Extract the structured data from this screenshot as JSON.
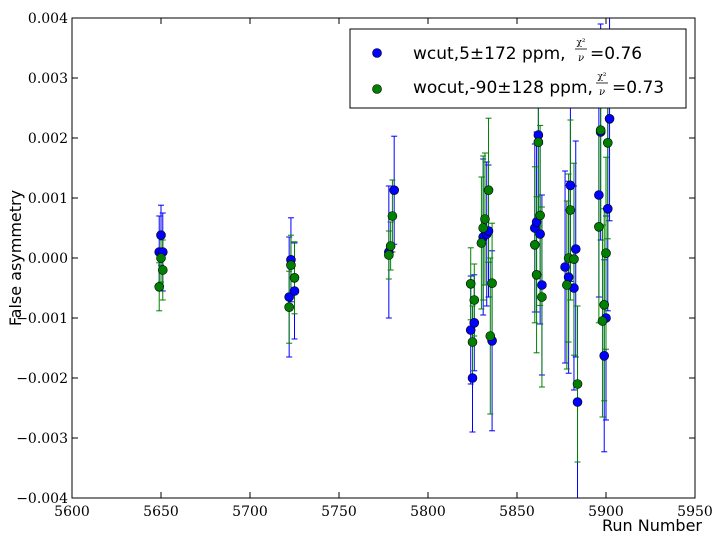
{
  "chart_data": {
    "type": "scatter",
    "xlabel": "Run Number",
    "ylabel": "False asymmetry",
    "xlim": [
      5600,
      5950
    ],
    "ylim": [
      -0.004,
      0.004
    ],
    "x_ticks": [
      5600,
      5650,
      5700,
      5750,
      5800,
      5850,
      5900,
      5950
    ],
    "x_tick_labels": [
      "5600",
      "5650",
      "5700",
      "5750",
      "5800",
      "5850",
      "5900",
      "5950"
    ],
    "y_ticks": [
      -0.004,
      -0.003,
      -0.002,
      -0.001,
      0.0,
      0.001,
      0.002,
      0.003,
      0.004
    ],
    "y_tick_labels": [
      "−0.004",
      "−0.003",
      "−0.002",
      "−0.001",
      "0.000",
      "0.001",
      "0.002",
      "0.003",
      "0.004"
    ],
    "legend_position": "top-right",
    "series": [
      {
        "name": "wcut,5±172 ppm,χ²/ν=0.76",
        "legend_text": "wcut,5±172 ppm,",
        "legend_value": "=0.76",
        "color": "#0000ff",
        "points": [
          {
            "x": 5649,
            "y": 0.0001,
            "err": 0.0006
          },
          {
            "x": 5650,
            "y": 0.00038,
            "err": 0.0005
          },
          {
            "x": 5651,
            "y": 0.0001,
            "err": 0.00065
          },
          {
            "x": 5722,
            "y": -0.00065,
            "err": 0.001
          },
          {
            "x": 5723,
            "y": -3e-05,
            "err": 0.0007
          },
          {
            "x": 5725,
            "y": -0.00055,
            "err": 0.0008
          },
          {
            "x": 5778,
            "y": 0.0001,
            "err": 0.0011
          },
          {
            "x": 5781,
            "y": 0.00113,
            "err": 0.0009
          },
          {
            "x": 5824,
            "y": -0.0012,
            "err": 0.0009
          },
          {
            "x": 5825,
            "y": -0.002,
            "err": 0.0009
          },
          {
            "x": 5826,
            "y": -0.00108,
            "err": 0.0008
          },
          {
            "x": 5831,
            "y": 0.00035,
            "err": 0.0013
          },
          {
            "x": 5833,
            "y": 0.0004,
            "err": 0.0012
          },
          {
            "x": 5834,
            "y": 0.00045,
            "err": 0.0011
          },
          {
            "x": 5836,
            "y": -0.00138,
            "err": 0.0015
          },
          {
            "x": 5860,
            "y": 0.0005,
            "err": 0.0014
          },
          {
            "x": 5861,
            "y": 0.0006,
            "err": 0.0015
          },
          {
            "x": 5862,
            "y": 0.00205,
            "err": 0.0016
          },
          {
            "x": 5863,
            "y": 0.0004,
            "err": 0.0015
          },
          {
            "x": 5864,
            "y": -0.00045,
            "err": 0.0015
          },
          {
            "x": 5877,
            "y": -0.00015,
            "err": 0.0016
          },
          {
            "x": 5879,
            "y": -0.00032,
            "err": 0.0016
          },
          {
            "x": 5880,
            "y": 0.00121,
            "err": 0.0016
          },
          {
            "x": 5882,
            "y": -0.0005,
            "err": 0.0017
          },
          {
            "x": 5883,
            "y": 0.00015,
            "err": 0.0018
          },
          {
            "x": 5884,
            "y": -0.0024,
            "err": 0.0016
          },
          {
            "x": 5896,
            "y": 0.00105,
            "err": 0.0017
          },
          {
            "x": 5897,
            "y": 0.0021,
            "err": 0.0018
          },
          {
            "x": 5899,
            "y": -0.00163,
            "err": 0.0016
          },
          {
            "x": 5900,
            "y": -0.001,
            "err": 0.0017
          },
          {
            "x": 5901,
            "y": 0.00082,
            "err": 0.0017
          },
          {
            "x": 5902,
            "y": 0.00232,
            "err": 0.0017
          }
        ]
      },
      {
        "name": "wocut,-90±128 ppm,χ²/ν=0.73",
        "legend_text": "wocut,-90±128 ppm,",
        "legend_value": "=0.73",
        "color": "#008000",
        "points": [
          {
            "x": 5649,
            "y": -0.00048,
            "err": 0.0004
          },
          {
            "x": 5650,
            "y": 0.0,
            "err": 0.0004
          },
          {
            "x": 5651,
            "y": -0.0002,
            "err": 0.0005
          },
          {
            "x": 5722,
            "y": -0.00082,
            "err": 0.0006
          },
          {
            "x": 5723,
            "y": -0.00012,
            "err": 0.0005
          },
          {
            "x": 5725,
            "y": -0.00033,
            "err": 0.0006
          },
          {
            "x": 5778,
            "y": 5e-05,
            "err": 0.0004
          },
          {
            "x": 5779,
            "y": 0.0002,
            "err": 0.0004
          },
          {
            "x": 5780,
            "y": 0.0007,
            "err": 0.0006
          },
          {
            "x": 5824,
            "y": -0.00043,
            "err": 0.0006
          },
          {
            "x": 5825,
            "y": -0.0014,
            "err": 0.0006
          },
          {
            "x": 5826,
            "y": -0.0007,
            "err": 0.0006
          },
          {
            "x": 5830,
            "y": 0.00025,
            "err": 0.0011
          },
          {
            "x": 5831,
            "y": 0.0005,
            "err": 0.0012
          },
          {
            "x": 5832,
            "y": 0.00065,
            "err": 0.0011
          },
          {
            "x": 5834,
            "y": 0.00113,
            "err": 0.0012
          },
          {
            "x": 5835,
            "y": -0.0013,
            "err": 0.0013
          },
          {
            "x": 5836,
            "y": -0.00042,
            "err": 0.001
          },
          {
            "x": 5860,
            "y": 0.00022,
            "err": 0.0013
          },
          {
            "x": 5861,
            "y": -0.00028,
            "err": 0.0013
          },
          {
            "x": 5862,
            "y": 0.00193,
            "err": 0.0014
          },
          {
            "x": 5863,
            "y": 0.00071,
            "err": 0.0015
          },
          {
            "x": 5864,
            "y": -0.00065,
            "err": 0.0015
          },
          {
            "x": 5878,
            "y": -0.00045,
            "err": 0.0014
          },
          {
            "x": 5879,
            "y": 0.0,
            "err": 0.0014
          },
          {
            "x": 5880,
            "y": 0.0008,
            "err": 0.0015
          },
          {
            "x": 5882,
            "y": -2e-05,
            "err": 0.0016
          },
          {
            "x": 5884,
            "y": -0.0021,
            "err": 0.0013
          },
          {
            "x": 5896,
            "y": 0.00052,
            "err": 0.0016
          },
          {
            "x": 5897,
            "y": 0.00213,
            "err": 0.0016
          },
          {
            "x": 5898,
            "y": -0.00105,
            "err": 0.0016
          },
          {
            "x": 5899,
            "y": -0.00078,
            "err": 0.0016
          },
          {
            "x": 5900,
            "y": 8e-05,
            "err": 0.0016
          },
          {
            "x": 5901,
            "y": 0.00192,
            "err": 0.0016
          }
        ]
      }
    ]
  }
}
